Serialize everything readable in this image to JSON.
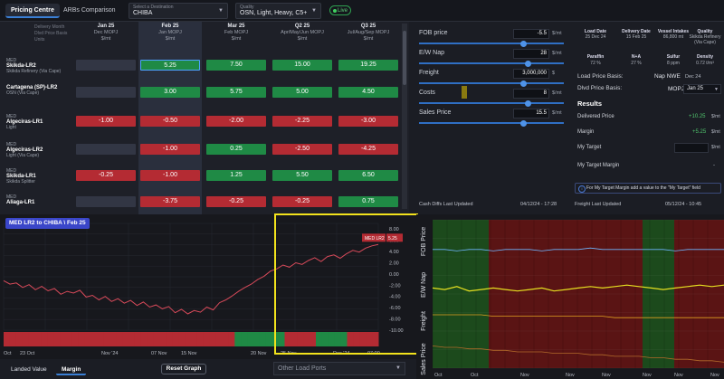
{
  "tabs": [
    {
      "label": "Pricing Centre",
      "active": true
    },
    {
      "label": "ARBs Comparison",
      "active": false
    }
  ],
  "destination": {
    "label": "Select a Destination",
    "value": "CHIBA"
  },
  "quality": {
    "label": "Quality",
    "value": "OSN, Light, Heavy, C5+"
  },
  "live_label": "Live",
  "grid": {
    "row_labels": [
      "Delivery Month",
      "Dlvd Price Basis",
      "Units"
    ],
    "columns": [
      {
        "month": "Jan 25",
        "basis": "Dec MOPJ",
        "units": "$/mt"
      },
      {
        "month": "Feb 25",
        "basis": "Jan MOPJ",
        "units": "$/mt"
      },
      {
        "month": "Mar 25",
        "basis": "Feb MOPJ",
        "units": "$/mt"
      },
      {
        "month": "Q2 25",
        "basis": "Apr/May/Jun MOPJ",
        "units": "$/mt"
      },
      {
        "month": "Q3 25",
        "basis": "Jul/Aug/Sep MOPJ",
        "units": "$/mt"
      }
    ],
    "rows": [
      {
        "region": "MED",
        "name": "Skikda-LR2",
        "sub": "Skikda Refinery (Via Cape)",
        "cells": [
          "",
          "5.25",
          "7.50",
          "15.00",
          "19.25"
        ],
        "colors": [
          "e",
          "g",
          "g",
          "g",
          "g"
        ]
      },
      {
        "region": "",
        "name": "Cartagena (SP)-LR2",
        "sub": "OSN (Via Cape)",
        "cells": [
          "",
          "3.00",
          "5.75",
          "5.00",
          "4.50"
        ],
        "colors": [
          "e",
          "g",
          "g",
          "g",
          "g"
        ]
      },
      {
        "region": "MED",
        "name": "Algeciras-LR1",
        "sub": "Light",
        "cells": [
          "-1.00",
          "-0.50",
          "-2.00",
          "-2.25",
          "-3.00"
        ],
        "colors": [
          "r",
          "r",
          "r",
          "r",
          "r"
        ]
      },
      {
        "region": "MED",
        "name": "Algeciras-LR2",
        "sub": "Light (Via Cape)",
        "cells": [
          "",
          "-1.00",
          "0.25",
          "-2.50",
          "-4.25"
        ],
        "colors": [
          "e",
          "r",
          "g",
          "r",
          "r"
        ]
      },
      {
        "region": "MED",
        "name": "Skikda-LR1",
        "sub": "Skikda Splitter",
        "cells": [
          "-0.25",
          "-1.00",
          "1.25",
          "5.50",
          "6.50"
        ],
        "colors": [
          "r",
          "r",
          "g",
          "g",
          "g"
        ]
      },
      {
        "region": "MED",
        "name": "Aliaga-LR1",
        "sub": "",
        "cells": [
          "",
          "-3.75",
          "-0.25",
          "-0.25",
          "0.75"
        ],
        "colors": [
          "e",
          "r",
          "r",
          "r",
          "g"
        ]
      }
    ]
  },
  "sliders": [
    {
      "label": "FOB price",
      "value": "-5.5",
      "unit": "$/mt",
      "pos": 0.72
    },
    {
      "label": "E/W Nap",
      "value": "28",
      "unit": "$/mt",
      "pos": 0.75
    },
    {
      "label": "Freight",
      "value": "3,000,000",
      "unit": "$",
      "pos": 0.72
    },
    {
      "label": "Costs",
      "value": "8",
      "unit": "$/mt",
      "pos": 0.75
    },
    {
      "label": "Sales Price",
      "value": "15.5",
      "unit": "$/mt",
      "pos": 0.72
    }
  ],
  "quality_info": {
    "headers1": [
      "Load Date",
      "Delivery Date",
      "Vessel Intakes",
      "Quality"
    ],
    "values1": [
      "25 Dec 24",
      "15 Feb 25",
      "86,800 mt",
      "Skikda Refinery (Via Cape)"
    ],
    "headers2": [
      "Paraffin",
      "N+A",
      "Sulfur",
      "Density"
    ],
    "values2": [
      "72 %",
      "27 %",
      "8 ppm",
      "0.72 t/m³"
    ]
  },
  "load_price_basis": {
    "label": "Load Price Basis:",
    "value": "Nap NWE",
    "month": "Dec 24"
  },
  "dlvd_price_basis": {
    "label": "Dlvd Price Basis:",
    "value": "MOPJ",
    "month": "Jan 25"
  },
  "results": {
    "title": "Results",
    "delivered_price": {
      "label": "Delivered Price",
      "value": "+10.25",
      "unit": "$/mt"
    },
    "margin": {
      "label": "Margin",
      "value": "+5.25",
      "unit": "$/mt"
    },
    "my_target": {
      "label": "My Target",
      "unit": "$/mt"
    },
    "my_target_margin": {
      "label": "My Target Margin",
      "value": "-"
    }
  },
  "info_text": "For My Target Margin add a value to the \"My Target\" field",
  "footer": {
    "cash_label": "Cash Diffs Last Updated",
    "cash_time": "04/12/24 - 17:28",
    "freight_label": "Freight Last Updated",
    "freight_time": "05/12/24 - 10:45"
  },
  "chart_data": [
    {
      "type": "line",
      "title": "MED LR2 to CHIBA \\ Feb 25",
      "x_ticks": [
        "Oct",
        "23 Oct",
        "Nov '24",
        "07 Nov",
        "15 Nov",
        "20 Nov",
        "25 Nov",
        "Dec '24",
        "07:00"
      ],
      "y_ticks": [
        "8.00",
        "6.00",
        "4.00",
        "2.00",
        "0.00",
        "-2.00",
        "-4.00",
        "-6.00",
        "-8.00",
        "-10.00"
      ],
      "ylim": [
        -10,
        9
      ],
      "series": [
        {
          "name": "MED LR2",
          "last_value": "5.25",
          "color": "#d84a5a",
          "values": [
            -1.2,
            -1.8,
            -1.6,
            -2.4,
            -1.9,
            -2.8,
            -2.2,
            -3.0,
            -2.6,
            -3.6,
            -3.1,
            -3.4,
            -2.9,
            -4.1,
            -3.8,
            -4.6,
            -4.0,
            -4.9,
            -4.4,
            -5.2,
            -4.7,
            -5.6,
            -5.0,
            -5.9,
            -5.5,
            -6.2,
            -5.8,
            -6.9,
            -6.3,
            -7.1,
            -6.5,
            -6.8,
            -5.9,
            -6.4,
            -5.1,
            -4.6,
            -3.9,
            -3.1,
            -2.4,
            -1.8,
            -1.0,
            -0.4,
            0.5,
            0.9,
            1.6,
            1.2,
            2.0,
            1.7,
            2.4,
            2.9,
            2.2,
            3.1,
            3.4,
            2.8,
            3.6,
            4.2,
            3.9,
            4.6,
            5.0,
            5.25
          ]
        }
      ]
    },
    {
      "type": "line",
      "y_labels": [
        "FOB Price",
        "E/W Nap",
        "Freight",
        "Sales Price"
      ],
      "x_ticks": [
        "Oct",
        "Oct",
        "Nov",
        "Nov",
        "Nov",
        "Nov",
        "Nov",
        "Nov"
      ],
      "series": [
        {
          "name": "FOB Price",
          "color": "#e6e020",
          "values": [
            0.46,
            0.47,
            0.45,
            0.48,
            0.47,
            0.46,
            0.47,
            0.48,
            0.47,
            0.46,
            0.48,
            0.47,
            0.46,
            0.45,
            0.46,
            0.45,
            0.44,
            0.45,
            0.46,
            0.47,
            0.46,
            0.45,
            0.44,
            0.45,
            0.44
          ]
        },
        {
          "name": "E/W Nap",
          "color": "#6fb6ff",
          "values": [
            0.2,
            0.2,
            0.21,
            0.2,
            0.2,
            0.21,
            0.2,
            0.2,
            0.2,
            0.21,
            0.2,
            0.2,
            0.2,
            0.19,
            0.2,
            0.2,
            0.2,
            0.2,
            0.2,
            0.2,
            0.21,
            0.2,
            0.2,
            0.2,
            0.2
          ]
        },
        {
          "name": "Freight",
          "color": "#e0a020",
          "values": [
            0.64,
            0.64,
            0.64,
            0.64,
            0.64,
            0.65,
            0.65,
            0.65,
            0.65,
            0.65,
            0.65,
            0.65,
            0.65,
            0.65,
            0.65,
            0.66,
            0.66,
            0.66,
            0.66,
            0.66,
            0.66,
            0.66,
            0.66,
            0.66,
            0.66
          ]
        },
        {
          "name": "Sales Price",
          "color": "#b26a2a",
          "values": [
            0.85,
            0.86,
            0.86,
            0.87,
            0.87,
            0.88,
            0.88,
            0.89,
            0.89,
            0.89,
            0.9,
            0.9,
            0.9,
            0.91,
            0.91,
            0.92,
            0.92,
            0.92,
            0.93,
            0.93,
            0.94,
            0.94,
            0.95,
            0.95,
            0.96
          ]
        }
      ]
    }
  ],
  "bottom": {
    "tabs": [
      "Landed Value",
      "Margin"
    ],
    "reset_label": "Reset Graph",
    "other_ports_placeholder": "Other Load Ports"
  }
}
